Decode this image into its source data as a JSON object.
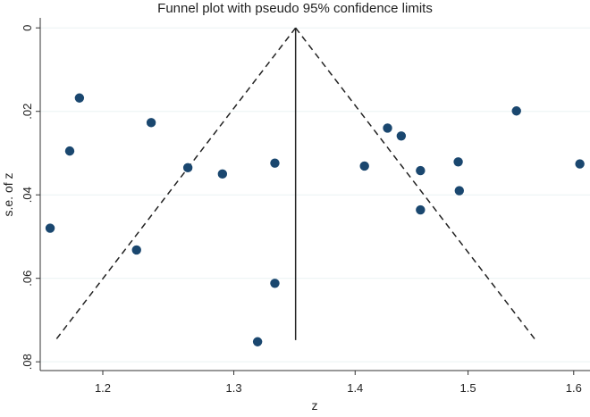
{
  "chart_data": {
    "type": "scatter",
    "title": "Funnel plot with pseudo 95% confidence limits",
    "xlabel": "z",
    "ylabel": "s.e. of z",
    "x_scale": "log",
    "y_reversed": true,
    "xlim": [
      1.155,
      1.616
    ],
    "ylim": [
      -0.0024,
      0.0821
    ],
    "grid": "horizontal",
    "x_ticks": [
      1.2,
      1.3,
      1.4,
      1.5,
      1.6
    ],
    "x_tick_labels": [
      "1.2",
      "1.3",
      "1.4",
      "1.5",
      "1.6"
    ],
    "y_ticks": [
      0,
      0.02,
      0.04,
      0.06,
      0.08
    ],
    "y_tick_labels": [
      "0",
      ".02",
      ".04",
      ".06",
      ".08"
    ],
    "pooled_estimate": 1.35,
    "funnel_max_se": 0.0748,
    "confidence_z": 1.96,
    "colors": {
      "points": "#1a476f",
      "lines": "#222222",
      "grid": "#eaf2f3"
    },
    "points": [
      {
        "x": 1.162,
        "y": 0.048
      },
      {
        "x": 1.176,
        "y": 0.0295
      },
      {
        "x": 1.183,
        "y": 0.0168
      },
      {
        "x": 1.225,
        "y": 0.0532
      },
      {
        "x": 1.236,
        "y": 0.0227
      },
      {
        "x": 1.264,
        "y": 0.0335
      },
      {
        "x": 1.291,
        "y": 0.035
      },
      {
        "x": 1.319,
        "y": 0.0752
      },
      {
        "x": 1.333,
        "y": 0.0324
      },
      {
        "x": 1.333,
        "y": 0.0612
      },
      {
        "x": 1.408,
        "y": 0.0331
      },
      {
        "x": 1.428,
        "y": 0.024
      },
      {
        "x": 1.44,
        "y": 0.0259
      },
      {
        "x": 1.457,
        "y": 0.0342
      },
      {
        "x": 1.457,
        "y": 0.0436
      },
      {
        "x": 1.491,
        "y": 0.0321
      },
      {
        "x": 1.492,
        "y": 0.039
      },
      {
        "x": 1.545,
        "y": 0.0199
      },
      {
        "x": 1.606,
        "y": 0.0326
      }
    ]
  }
}
